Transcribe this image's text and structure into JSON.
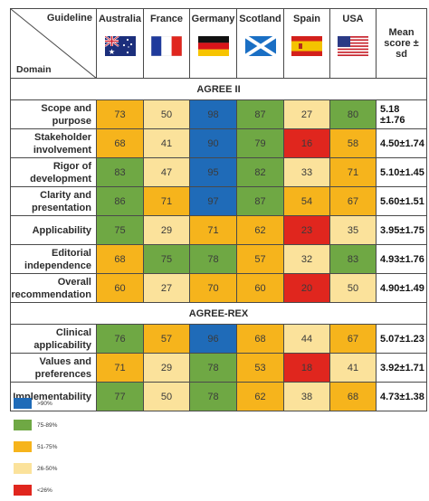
{
  "header": {
    "guideline_label": "Guideline",
    "domain_label": "Domain",
    "countries": [
      {
        "name": "Australia",
        "flag": "australia-flag-icon"
      },
      {
        "name": "France",
        "flag": "france-flag-icon"
      },
      {
        "name": "Germany",
        "flag": "germany-flag-icon"
      },
      {
        "name": "Scotland",
        "flag": "scotland-flag-icon"
      },
      {
        "name": "Spain",
        "flag": "spain-flag-icon"
      },
      {
        "name": "USA",
        "flag": "usa-flag-icon"
      }
    ],
    "mean_label_line1": "Mean",
    "mean_label_line2": "score ±",
    "mean_label_line3": "sd"
  },
  "sections": [
    {
      "title": "AGREE II",
      "rows": [
        {
          "line1": "Scope and",
          "line2": "purpose",
          "values": [
            73,
            50,
            98,
            87,
            27,
            80
          ],
          "mean_line1": "5.18",
          "mean_line2": "±1.76"
        },
        {
          "line1": "Stakeholder",
          "line2": "involvement",
          "values": [
            68,
            41,
            90,
            79,
            16,
            58
          ],
          "mean_line1": "4.50±1.74",
          "mean_line2": ""
        },
        {
          "line1": "Rigor of",
          "line2": "development",
          "values": [
            83,
            47,
            95,
            82,
            33,
            71
          ],
          "mean_line1": "5.10±1.45",
          "mean_line2": ""
        },
        {
          "line1": "Clarity and",
          "line2": "presentation",
          "values": [
            86,
            71,
            97,
            87,
            54,
            67
          ],
          "mean_line1": "5.60±1.51",
          "mean_line2": ""
        },
        {
          "line1": "Applicability",
          "line2": "",
          "values": [
            75,
            29,
            71,
            62,
            23,
            35
          ],
          "mean_line1": "3.95±1.75",
          "mean_line2": ""
        },
        {
          "line1": "Editorial",
          "line2": "independence",
          "values": [
            68,
            75,
            78,
            57,
            32,
            83
          ],
          "mean_line1": "4.93±1.76",
          "mean_line2": ""
        },
        {
          "line1": "Overall",
          "line2": "recommendation",
          "values": [
            60,
            27,
            70,
            60,
            20,
            50
          ],
          "mean_line1": "4.90±1.49",
          "mean_line2": ""
        }
      ]
    },
    {
      "title": "AGREE-REX",
      "rows": [
        {
          "line1": "Clinical",
          "line2": "applicability",
          "values": [
            76,
            57,
            96,
            68,
            44,
            67
          ],
          "mean_line1": "5.07±1.23",
          "mean_line2": ""
        },
        {
          "line1": "Values and",
          "line2": "preferences",
          "values": [
            71,
            29,
            78,
            53,
            18,
            41
          ],
          "mean_line1": "3.92±1.71",
          "mean_line2": ""
        },
        {
          "line1": "Implementability",
          "line2": "",
          "values": [
            77,
            50,
            78,
            62,
            38,
            68
          ],
          "mean_line1": "4.73±1.38",
          "mean_line2": ""
        }
      ]
    }
  ],
  "cell_classes": [
    [
      "c-yellow",
      "c-pale",
      "c-blue",
      "c-green",
      "c-pale",
      "c-green"
    ],
    [
      "c-yellow",
      "c-pale",
      "c-blue",
      "c-green",
      "c-red",
      "c-yellow"
    ],
    [
      "c-green",
      "c-pale",
      "c-blue",
      "c-green",
      "c-pale",
      "c-yellow"
    ],
    [
      "c-green",
      "c-yellow",
      "c-blue",
      "c-green",
      "c-yellow",
      "c-yellow"
    ],
    [
      "c-green",
      "c-pale",
      "c-yellow",
      "c-yellow",
      "c-red",
      "c-pale"
    ],
    [
      "c-yellow",
      "c-green",
      "c-green",
      "c-yellow",
      "c-pale",
      "c-green"
    ],
    [
      "c-yellow",
      "c-pale",
      "c-yellow",
      "c-yellow",
      "c-red",
      "c-pale"
    ],
    [
      "c-green",
      "c-yellow",
      "c-blue",
      "c-yellow",
      "c-pale",
      "c-yellow"
    ],
    [
      "c-yellow",
      "c-pale",
      "c-green",
      "c-yellow",
      "c-red",
      "c-pale"
    ],
    [
      "c-green",
      "c-pale",
      "c-green",
      "c-yellow",
      "c-pale",
      "c-yellow"
    ]
  ],
  "legend": [
    {
      "label": ">90%",
      "color": "#1f6bb8"
    },
    {
      "label": "75-89%",
      "color": "#6fa844"
    },
    {
      "label": "51-75%",
      "color": "#f6b41c"
    },
    {
      "label": "26-50%",
      "color": "#fbe29b"
    },
    {
      "label": "<26%",
      "color": "#e0261e"
    }
  ]
}
